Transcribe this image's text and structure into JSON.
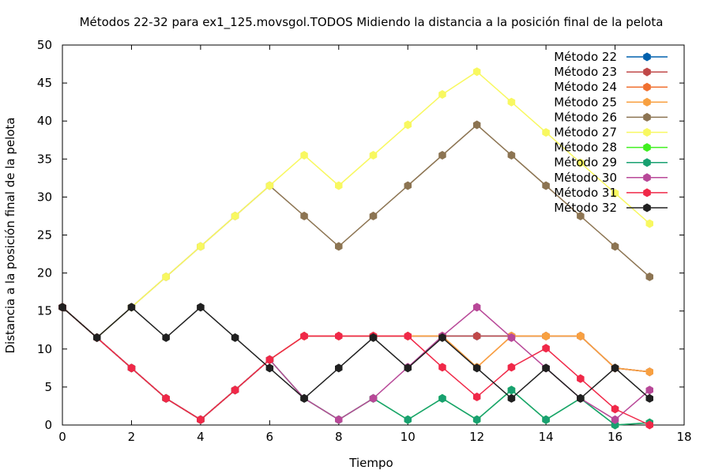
{
  "chart_data": {
    "type": "line",
    "title": "Métodos 22-32 para ex1_125.movsgol.TODOS Midiendo la distancia a la posición final de la pelota",
    "xlabel": "Tiempo",
    "ylabel": "Distancia a la posición final de la pelota",
    "xlim": [
      0,
      18
    ],
    "ylim": [
      0,
      50
    ],
    "xticks": [
      0,
      2,
      4,
      6,
      8,
      10,
      12,
      14,
      16,
      18
    ],
    "yticks": [
      0,
      5,
      10,
      15,
      20,
      25,
      30,
      35,
      40,
      45,
      50
    ],
    "grid": false,
    "legend_position": "top-right",
    "x": [
      0,
      1,
      2,
      3,
      4,
      5,
      6,
      7,
      8,
      9,
      10,
      11,
      12,
      13,
      14,
      15,
      16,
      17
    ],
    "series": [
      {
        "name": "Método 22",
        "color": "#0060ad",
        "values": [
          15.5,
          11.5,
          7.5,
          3.5,
          0.7,
          4.6,
          8.6,
          11.7,
          11.7,
          11.7,
          11.7,
          11.7,
          11.7,
          11.7,
          11.7,
          11.7,
          7.5,
          7.0
        ]
      },
      {
        "name": "Método 23",
        "color": "#c04848",
        "values": [
          15.5,
          11.5,
          7.5,
          3.5,
          0.7,
          4.6,
          8.6,
          11.7,
          11.7,
          11.7,
          11.7,
          11.7,
          11.7,
          11.7,
          11.7,
          11.7,
          7.5,
          7.0
        ]
      },
      {
        "name": "Método 24",
        "color": "#f07030",
        "values": [
          15.5,
          11.5,
          7.5,
          3.5,
          0.7,
          4.6,
          8.6,
          11.7,
          11.7,
          11.7,
          11.7,
          11.7,
          7.6,
          11.7,
          11.7,
          11.7,
          7.5,
          7.0
        ]
      },
      {
        "name": "Método 25",
        "color": "#f8a040",
        "values": [
          15.5,
          11.5,
          7.5,
          3.5,
          0.7,
          4.6,
          8.6,
          11.7,
          11.7,
          11.7,
          11.7,
          11.7,
          7.6,
          11.7,
          11.7,
          11.7,
          7.5,
          7.0
        ]
      },
      {
        "name": "Método 26",
        "color": "#8c7452",
        "values": [
          15.5,
          11.5,
          15.5,
          19.5,
          23.5,
          27.5,
          31.5,
          27.5,
          23.5,
          27.5,
          31.5,
          35.5,
          39.5,
          35.5,
          31.5,
          27.5,
          23.5,
          19.5
        ]
      },
      {
        "name": "Método 27",
        "color": "#f8f860",
        "values": [
          15.5,
          11.5,
          15.5,
          19.5,
          23.5,
          27.5,
          31.5,
          35.5,
          31.5,
          35.5,
          39.5,
          43.5,
          46.5,
          42.5,
          38.5,
          34.5,
          30.5,
          26.5
        ]
      },
      {
        "name": "Método 28",
        "color": "#40f020",
        "values": [
          15.5,
          11.5,
          7.5,
          3.5,
          0.7,
          4.6,
          8.6,
          3.5,
          0.7,
          3.5,
          0.7,
          3.5,
          0.7,
          4.6,
          0.7,
          3.5,
          0.0,
          0.3
        ]
      },
      {
        "name": "Método 29",
        "color": "#18a070",
        "values": [
          15.5,
          11.5,
          7.5,
          3.5,
          0.7,
          4.6,
          8.6,
          3.5,
          0.7,
          3.5,
          0.7,
          3.5,
          0.7,
          4.6,
          0.7,
          3.5,
          0.0,
          0.3
        ]
      },
      {
        "name": "Método 30",
        "color": "#b84898",
        "values": [
          15.5,
          11.5,
          7.5,
          3.5,
          0.7,
          4.6,
          8.6,
          3.5,
          0.7,
          3.5,
          7.6,
          11.7,
          15.5,
          11.5,
          7.5,
          3.5,
          0.7,
          4.6
        ]
      },
      {
        "name": "Método 31",
        "color": "#f02848",
        "values": [
          15.5,
          11.5,
          7.5,
          3.5,
          0.7,
          4.6,
          8.6,
          11.7,
          11.7,
          11.7,
          11.7,
          7.6,
          3.7,
          7.6,
          10.1,
          6.1,
          2.1,
          0.0
        ]
      },
      {
        "name": "Método 32",
        "color": "#202020",
        "values": [
          15.5,
          11.5,
          15.5,
          11.5,
          15.5,
          11.5,
          7.5,
          3.5,
          7.5,
          11.5,
          7.5,
          11.5,
          7.5,
          3.5,
          7.5,
          3.5,
          7.5,
          3.5
        ]
      }
    ]
  }
}
